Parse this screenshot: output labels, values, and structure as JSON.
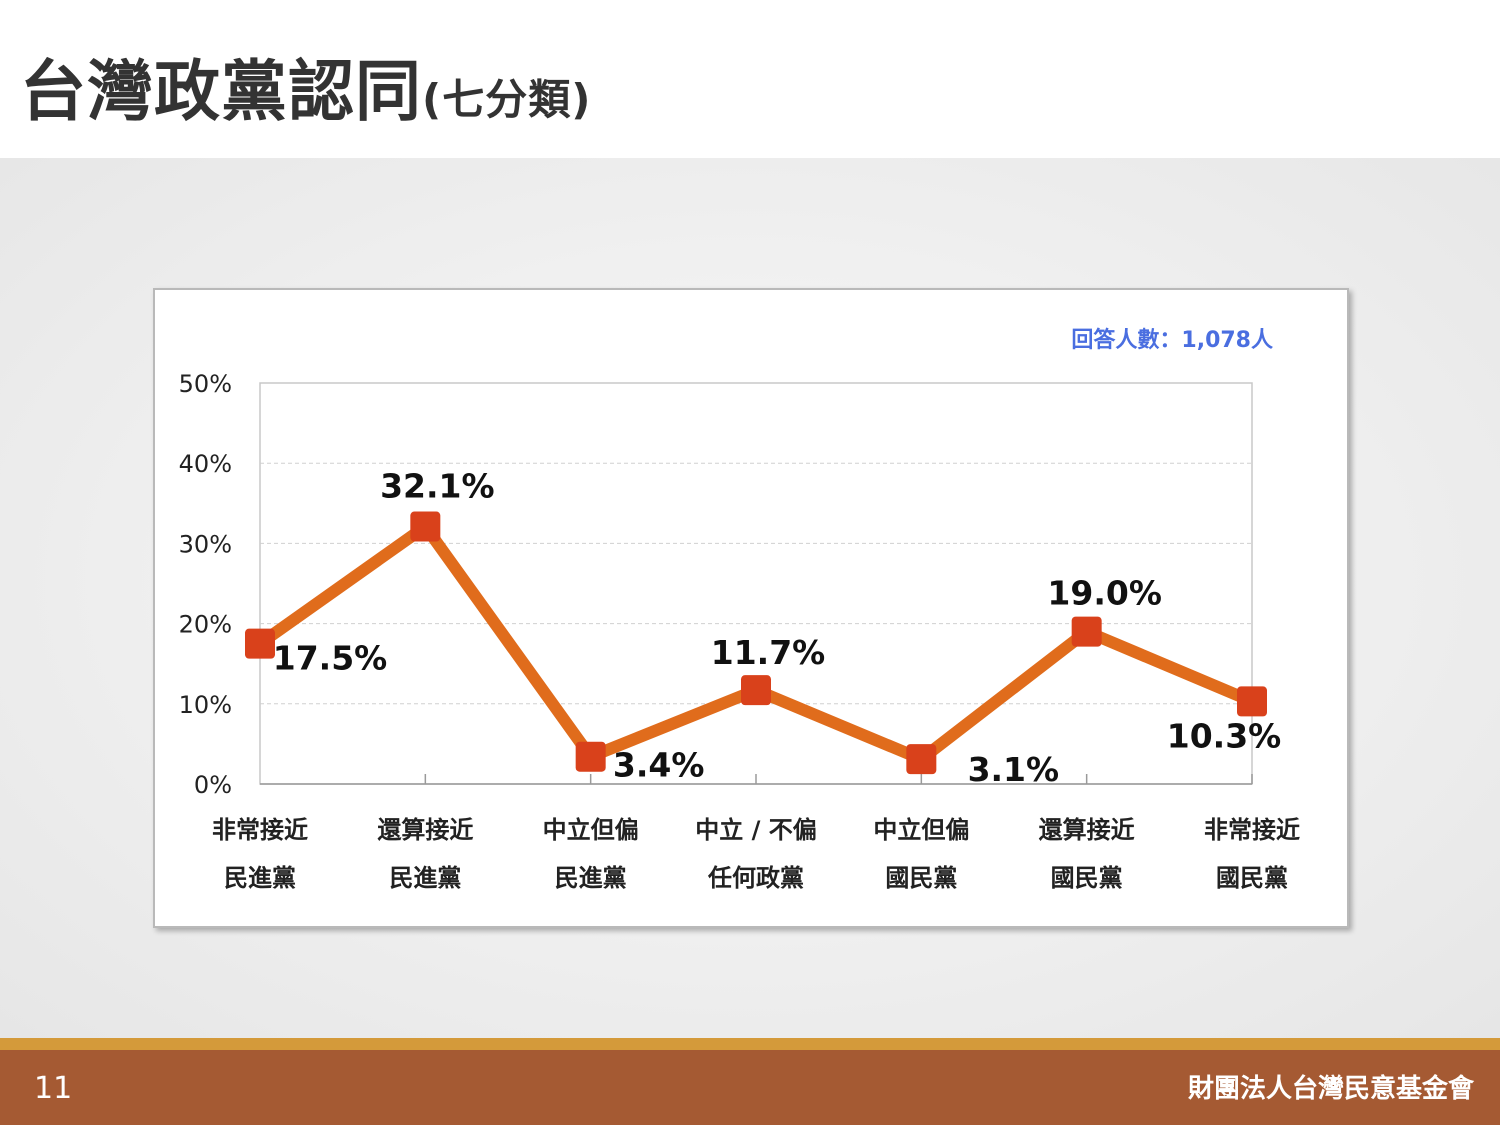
{
  "title": {
    "main": "台灣政黨認同",
    "sub": "(七分類)"
  },
  "chart_data": {
    "type": "line",
    "note": "回答人數：1,078人",
    "categories": [
      [
        "非常接近",
        "民進黨"
      ],
      [
        "還算接近",
        "民進黨"
      ],
      [
        "中立但偏",
        "民進黨"
      ],
      [
        "中立 / 不偏",
        "任何政黨"
      ],
      [
        "中立但偏",
        "國民黨"
      ],
      [
        "還算接近",
        "國民黨"
      ],
      [
        "非常接近",
        "國民黨"
      ]
    ],
    "values": [
      17.5,
      32.1,
      3.4,
      11.7,
      3.1,
      19.0,
      10.3
    ],
    "labels": [
      "17.5%",
      "32.1%",
      "3.4%",
      "11.7%",
      "3.1%",
      "19.0%",
      "10.3%"
    ],
    "yticks": [
      "0%",
      "10%",
      "20%",
      "30%",
      "40%",
      "50%"
    ],
    "ylim": [
      0,
      50
    ],
    "grid": true,
    "line_color": "#e06c1c",
    "marker_color": "#d9411b"
  },
  "footer": {
    "page": "11",
    "org": "財團法人台灣民意基金會"
  }
}
